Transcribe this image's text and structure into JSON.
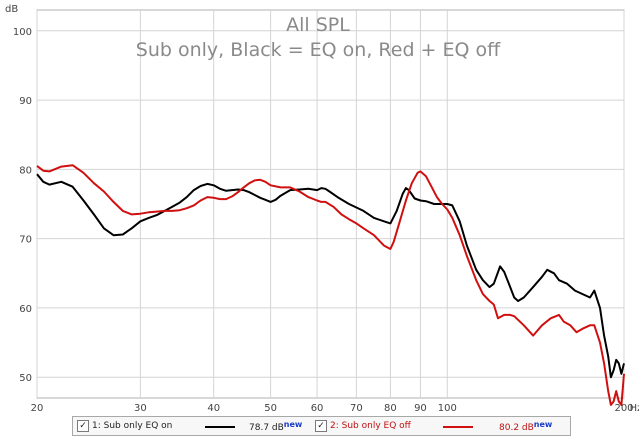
{
  "chart_data": {
    "type": "line",
    "title": "All SPL",
    "subtitle": "Sub only, Black = EQ on, Red + EQ off",
    "ylabel": "dB",
    "xlabel": "Hz",
    "x_scale": "log",
    "xlim": [
      20,
      200
    ],
    "ylim": [
      47,
      103
    ],
    "grid": true,
    "x_ticks": [
      {
        "value": 20,
        "label": "20"
      },
      {
        "value": 30,
        "label": "30"
      },
      {
        "value": 40,
        "label": "40"
      },
      {
        "value": 50,
        "label": "50"
      },
      {
        "value": 60,
        "label": "60"
      },
      {
        "value": 70,
        "label": "70"
      },
      {
        "value": 80,
        "label": "80"
      },
      {
        "value": 90,
        "label": "90"
      },
      {
        "value": 100,
        "label": "100"
      },
      {
        "value": 200,
        "label": "200"
      }
    ],
    "y_ticks": [
      {
        "value": 50,
        "label": "50"
      },
      {
        "value": 60,
        "label": "60"
      },
      {
        "value": 70,
        "label": "70"
      },
      {
        "value": 80,
        "label": "80"
      },
      {
        "value": 90,
        "label": "90"
      },
      {
        "value": 100,
        "label": "100"
      }
    ],
    "series": [
      {
        "name": "1: Sub only EQ on",
        "color": "#000000",
        "points": [
          [
            20,
            79.3
          ],
          [
            20.5,
            78.2
          ],
          [
            21,
            77.8
          ],
          [
            22,
            78.2
          ],
          [
            23,
            77.5
          ],
          [
            24,
            75.5
          ],
          [
            25,
            73.5
          ],
          [
            26,
            71.5
          ],
          [
            27,
            70.5
          ],
          [
            28,
            70.6
          ],
          [
            29,
            71.5
          ],
          [
            30,
            72.5
          ],
          [
            31,
            73
          ],
          [
            32,
            73.4
          ],
          [
            33,
            74
          ],
          [
            34,
            74.6
          ],
          [
            35,
            75.2
          ],
          [
            36,
            76
          ],
          [
            37,
            77
          ],
          [
            38,
            77.6
          ],
          [
            39,
            77.9
          ],
          [
            40,
            77.7
          ],
          [
            41,
            77.2
          ],
          [
            42,
            76.9
          ],
          [
            43,
            77
          ],
          [
            44,
            77.1
          ],
          [
            45,
            77
          ],
          [
            46,
            76.7
          ],
          [
            47,
            76.3
          ],
          [
            48,
            75.9
          ],
          [
            49,
            75.6
          ],
          [
            50,
            75.3
          ],
          [
            51,
            75.6
          ],
          [
            52,
            76.2
          ],
          [
            54,
            77
          ],
          [
            56,
            77.1
          ],
          [
            58,
            77.2
          ],
          [
            60,
            77
          ],
          [
            61,
            77.3
          ],
          [
            62,
            77.2
          ],
          [
            63,
            76.8
          ],
          [
            65,
            76
          ],
          [
            68,
            75
          ],
          [
            70,
            74.5
          ],
          [
            72,
            74
          ],
          [
            75,
            73
          ],
          [
            78,
            72.5
          ],
          [
            80,
            72.2
          ],
          [
            82,
            74
          ],
          [
            84,
            76.5
          ],
          [
            85,
            77.3
          ],
          [
            86,
            77
          ],
          [
            88,
            75.8
          ],
          [
            90,
            75.5
          ],
          [
            92,
            75.4
          ],
          [
            95,
            75
          ],
          [
            98,
            75
          ],
          [
            100,
            75
          ],
          [
            102,
            74.8
          ],
          [
            105,
            72.5
          ],
          [
            108,
            69
          ],
          [
            112,
            65.5
          ],
          [
            115,
            64
          ],
          [
            118,
            63
          ],
          [
            120,
            63.5
          ],
          [
            123,
            66
          ],
          [
            125,
            65.2
          ],
          [
            128,
            63
          ],
          [
            130,
            61.5
          ],
          [
            132,
            61
          ],
          [
            135,
            61.5
          ],
          [
            140,
            63
          ],
          [
            145,
            64.5
          ],
          [
            148,
            65.5
          ],
          [
            152,
            65
          ],
          [
            155,
            64
          ],
          [
            160,
            63.5
          ],
          [
            165,
            62.5
          ],
          [
            170,
            62
          ],
          [
            175,
            61.5
          ],
          [
            178,
            62.5
          ],
          [
            182,
            60
          ],
          [
            185,
            56
          ],
          [
            188,
            53
          ],
          [
            190,
            50
          ],
          [
            192,
            51
          ],
          [
            194,
            52.5
          ],
          [
            196,
            52
          ],
          [
            198,
            50.5
          ],
          [
            200,
            52
          ]
        ]
      },
      {
        "name": "2: Sub only EQ off",
        "color": "#d01010",
        "points": [
          [
            20,
            80.5
          ],
          [
            20.5,
            79.8
          ],
          [
            21,
            79.7
          ],
          [
            22,
            80.4
          ],
          [
            23,
            80.6
          ],
          [
            24,
            79.5
          ],
          [
            25,
            78
          ],
          [
            26,
            76.8
          ],
          [
            27,
            75.3
          ],
          [
            28,
            74
          ],
          [
            29,
            73.5
          ],
          [
            30,
            73.6
          ],
          [
            31,
            73.8
          ],
          [
            32,
            73.9
          ],
          [
            33,
            74
          ],
          [
            34,
            74
          ],
          [
            35,
            74.1
          ],
          [
            36,
            74.4
          ],
          [
            37,
            74.8
          ],
          [
            38,
            75.5
          ],
          [
            39,
            76
          ],
          [
            40,
            75.9
          ],
          [
            41,
            75.7
          ],
          [
            42,
            75.7
          ],
          [
            43,
            76.1
          ],
          [
            44,
            76.7
          ],
          [
            45,
            77.4
          ],
          [
            46,
            78
          ],
          [
            47,
            78.4
          ],
          [
            48,
            78.5
          ],
          [
            49,
            78.2
          ],
          [
            50,
            77.7
          ],
          [
            52,
            77.4
          ],
          [
            54,
            77.4
          ],
          [
            56,
            76.8
          ],
          [
            58,
            76
          ],
          [
            60,
            75.5
          ],
          [
            61,
            75.3
          ],
          [
            62,
            75.3
          ],
          [
            64,
            74.6
          ],
          [
            66,
            73.5
          ],
          [
            68,
            72.8
          ],
          [
            70,
            72.2
          ],
          [
            72,
            71.5
          ],
          [
            75,
            70.5
          ],
          [
            78,
            69
          ],
          [
            80,
            68.5
          ],
          [
            81,
            69.5
          ],
          [
            83,
            72.5
          ],
          [
            85,
            75.5
          ],
          [
            87,
            78
          ],
          [
            89,
            79.5
          ],
          [
            90,
            79.7
          ],
          [
            92,
            79
          ],
          [
            94,
            77.5
          ],
          [
            96,
            76
          ],
          [
            98,
            75
          ],
          [
            100,
            74.2
          ],
          [
            102,
            73
          ],
          [
            105,
            70.5
          ],
          [
            108,
            67.5
          ],
          [
            112,
            64
          ],
          [
            115,
            62
          ],
          [
            118,
            61
          ],
          [
            120,
            60.5
          ],
          [
            122,
            58.5
          ],
          [
            125,
            59
          ],
          [
            128,
            59
          ],
          [
            130,
            58.8
          ],
          [
            135,
            57.5
          ],
          [
            140,
            56
          ],
          [
            145,
            57.5
          ],
          [
            150,
            58.5
          ],
          [
            155,
            59
          ],
          [
            158,
            58
          ],
          [
            162,
            57.5
          ],
          [
            166,
            56.5
          ],
          [
            170,
            57
          ],
          [
            175,
            57.5
          ],
          [
            178,
            57.5
          ],
          [
            182,
            55
          ],
          [
            185,
            52
          ],
          [
            188,
            48
          ],
          [
            190,
            46
          ],
          [
            192,
            46.5
          ],
          [
            194,
            48
          ],
          [
            196,
            46.5
          ],
          [
            198,
            46
          ],
          [
            200,
            50.5
          ]
        ]
      }
    ],
    "legend": [
      {
        "label": "1: Sub only EQ on",
        "checked": true,
        "color": "#000000",
        "value": "78.7 dB",
        "badge": "new"
      },
      {
        "label": "2: Sub only EQ off",
        "checked": true,
        "color": "#d01010",
        "value": "80.2 dB",
        "badge": "new"
      }
    ],
    "legend_placement": "bottom"
  },
  "colors": {
    "grid": "#d4d4d4",
    "frame": "#b0b0b0",
    "title": "#8a8a8a",
    "axis_text": "#444444"
  },
  "check_glyph": "✓"
}
